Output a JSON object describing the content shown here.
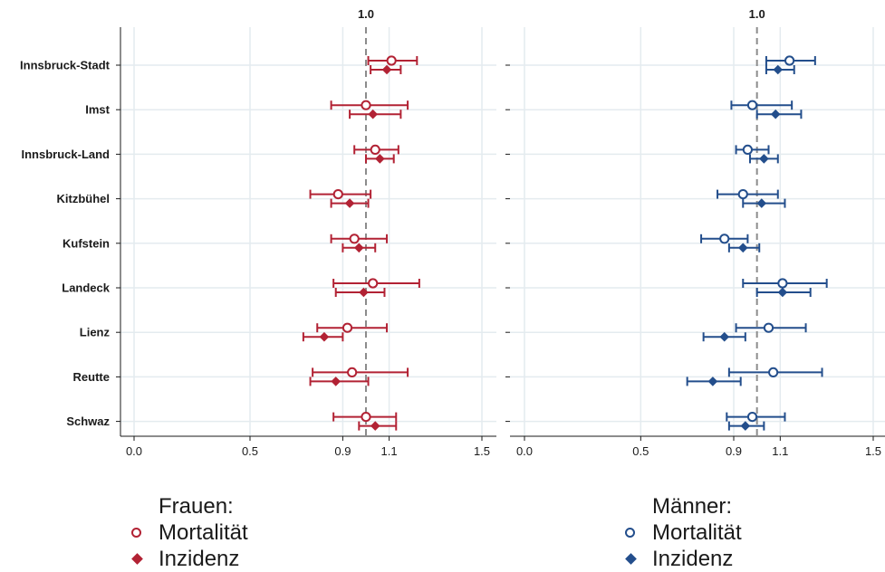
{
  "chart_data": [
    {
      "type": "scatter",
      "panel": "Frauen",
      "categories": [
        "Innsbruck-Stadt",
        "Imst",
        "Innsbruck-Land",
        "Kitzbühel",
        "Kufstein",
        "Landeck",
        "Lienz",
        "Reutte",
        "Schwaz"
      ],
      "xlim": [
        -0.05,
        1.55
      ],
      "xticks": [
        "0.0",
        "0.5",
        "0.9",
        "1.1",
        "1.5"
      ],
      "reference_line": 1.0,
      "reference_label": "1.0",
      "color": "#b22234",
      "series": [
        {
          "name": "Mortalität",
          "estimate": [
            1.11,
            1.0,
            1.04,
            0.88,
            0.95,
            1.03,
            0.92,
            0.94,
            1.0
          ],
          "lower": [
            1.01,
            0.85,
            0.95,
            0.76,
            0.85,
            0.86,
            0.79,
            0.77,
            0.86
          ],
          "upper": [
            1.22,
            1.18,
            1.14,
            1.02,
            1.09,
            1.23,
            1.09,
            1.18,
            1.13
          ]
        },
        {
          "name": "Inzidenz",
          "estimate": [
            1.09,
            1.03,
            1.06,
            0.93,
            0.97,
            0.99,
            0.82,
            0.87,
            1.04
          ],
          "lower": [
            1.02,
            0.93,
            1.0,
            0.85,
            0.9,
            0.87,
            0.73,
            0.76,
            0.97
          ],
          "upper": [
            1.15,
            1.15,
            1.12,
            1.01,
            1.04,
            1.08,
            0.9,
            1.01,
            1.13
          ]
        }
      ]
    },
    {
      "type": "scatter",
      "panel": "Männer",
      "categories": [
        "Innsbruck-Stadt",
        "Imst",
        "Innsbruck-Land",
        "Kitzbühel",
        "Kufstein",
        "Landeck",
        "Lienz",
        "Reutte",
        "Schwaz"
      ],
      "xlim": [
        -0.05,
        1.55
      ],
      "xticks": [
        "0.0",
        "0.5",
        "0.9",
        "1.1",
        "1.5"
      ],
      "reference_line": 1.0,
      "reference_label": "1.0",
      "color": "#234e8c",
      "series": [
        {
          "name": "Mortalität",
          "estimate": [
            1.14,
            0.98,
            0.96,
            0.94,
            0.86,
            1.11,
            1.05,
            1.07,
            0.98
          ],
          "lower": [
            1.04,
            0.89,
            0.91,
            0.83,
            0.76,
            0.94,
            0.91,
            0.88,
            0.87
          ],
          "upper": [
            1.25,
            1.15,
            1.05,
            1.09,
            0.96,
            1.3,
            1.21,
            1.28,
            1.12
          ]
        },
        {
          "name": "Inzidenz",
          "estimate": [
            1.09,
            1.08,
            1.03,
            1.02,
            0.94,
            1.11,
            0.86,
            0.81,
            0.95
          ],
          "lower": [
            1.04,
            1.0,
            0.97,
            0.94,
            0.88,
            1.0,
            0.77,
            0.7,
            0.88
          ],
          "upper": [
            1.16,
            1.19,
            1.09,
            1.12,
            1.01,
            1.23,
            0.95,
            0.93,
            1.03
          ]
        }
      ]
    }
  ],
  "legend": {
    "frauen": {
      "title": "Frauen:",
      "mortality": "Mortalität",
      "incidence": "Inzidenz"
    },
    "maenner": {
      "title": "Männer:",
      "mortality": "Mortalität",
      "incidence": "Inzidenz"
    }
  },
  "colors": {
    "frauen": "#b22234",
    "maenner": "#234e8c",
    "grid": "#e4ebef",
    "refline": "#8c8c8c",
    "axis": "#1a1a1a"
  }
}
